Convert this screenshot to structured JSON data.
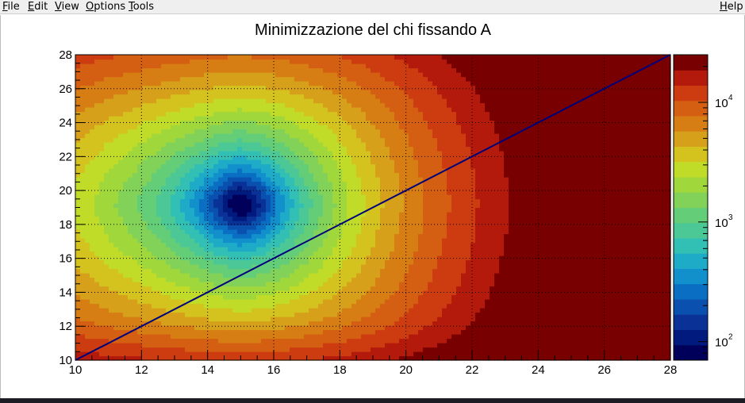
{
  "menubar": {
    "items": [
      {
        "label": "File",
        "underline": "F",
        "rest": "ile"
      },
      {
        "label": "Edit",
        "underline": "E",
        "rest": "dit"
      },
      {
        "label": "View",
        "underline": "V",
        "rest": "iew"
      },
      {
        "label": "Options",
        "underline": "O",
        "rest": "ptions"
      },
      {
        "label": "Tools",
        "underline": "T",
        "rest": "ools"
      }
    ],
    "help": {
      "label": "Help",
      "underline": "H",
      "rest": "elp"
    }
  },
  "chart_data": {
    "type": "heatmap",
    "title": "Minimizzazione del chi fissando A",
    "xlabel": "",
    "ylabel": "",
    "xlim": [
      10,
      28
    ],
    "ylim": [
      10,
      28
    ],
    "xticks": [
      "10",
      "12",
      "14",
      "16",
      "18",
      "20",
      "22",
      "24",
      "26",
      "28"
    ],
    "yticks": [
      "10",
      "12",
      "14",
      "16",
      "18",
      "20",
      "22",
      "24",
      "26",
      "28"
    ],
    "grid": true,
    "log_z": true,
    "minimum": {
      "x": 15,
      "y": 19.2
    },
    "z_min": 70,
    "z_max": 25000,
    "palette_levels": 20,
    "palette": [
      "#00005a",
      "#001a7e",
      "#0a3296",
      "#0a50ae",
      "#0a6ec3",
      "#1290cc",
      "#1eabc8",
      "#32bfb4",
      "#4cc896",
      "#64cd78",
      "#82d25a",
      "#a0d83c",
      "#c0dc28",
      "#d4c21e",
      "#d6a01a",
      "#d67e14",
      "#d45e12",
      "#cc3c10",
      "#b41a0c",
      "#780000"
    ],
    "colorbar_ticks": [
      {
        "value": 100,
        "base": "10",
        "exp": "2"
      },
      {
        "value": 1000,
        "base": "10",
        "exp": "3"
      },
      {
        "value": 10000,
        "base": "10",
        "exp": "4"
      }
    ],
    "overlay_line": {
      "points": [
        [
          10,
          10
        ],
        [
          28,
          28
        ]
      ],
      "color": "#00007a"
    }
  }
}
